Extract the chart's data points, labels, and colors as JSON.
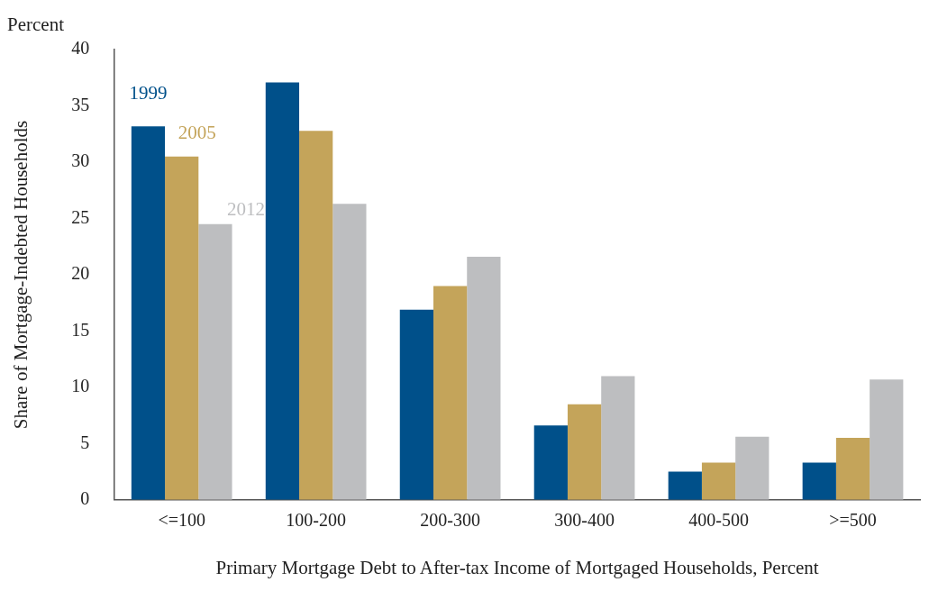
{
  "chart_data": {
    "type": "bar",
    "subtitle": "Percent",
    "xlabel": "Primary Mortgage Debt to After-tax Income of Mortgaged Households, Percent",
    "ylabel": "Share of Mortgage-Indebted Households",
    "categories": [
      "<=100",
      "100-200",
      "200-300",
      "300-400",
      "400-500",
      ">=500"
    ],
    "series": [
      {
        "name": "1999",
        "color": "#00508a",
        "values": [
          33.2,
          37.1,
          16.9,
          6.6,
          2.5,
          3.3
        ]
      },
      {
        "name": "2005",
        "color": "#c4a45a",
        "values": [
          30.5,
          32.8,
          19.0,
          8.5,
          3.3,
          5.5
        ]
      },
      {
        "name": "2012",
        "color": "#bdbec0",
        "values": [
          24.5,
          26.3,
          21.6,
          11.0,
          5.6,
          10.7
        ]
      }
    ],
    "ylim": [
      0,
      40
    ],
    "yticks": [
      0,
      5,
      10,
      15,
      20,
      25,
      30,
      35,
      40
    ],
    "grid": false
  }
}
